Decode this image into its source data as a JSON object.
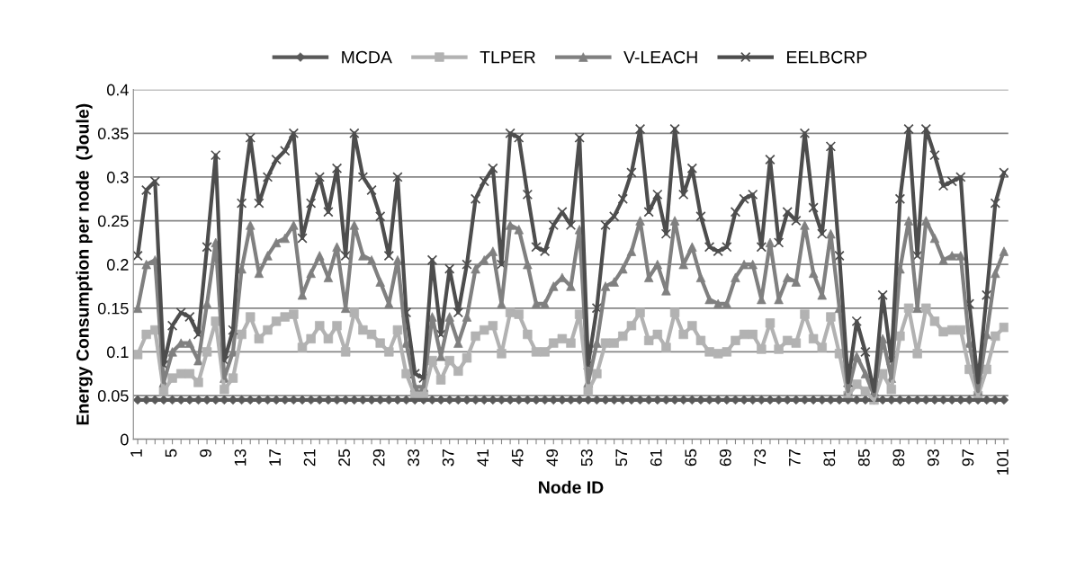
{
  "chart_data": {
    "type": "line",
    "xlabel": "Node ID",
    "ylabel": "Energy Consumption per node  (Joule)",
    "categories": [
      "1",
      null,
      null,
      null,
      "5",
      null,
      null,
      null,
      "9",
      null,
      null,
      null,
      "13",
      null,
      null,
      null,
      "17",
      null,
      null,
      null,
      "21",
      null,
      null,
      null,
      "25",
      null,
      null,
      null,
      "29",
      null,
      null,
      null,
      "33",
      null,
      null,
      null,
      "37",
      null,
      null,
      null,
      "41",
      null,
      null,
      null,
      "45",
      null,
      null,
      null,
      "49",
      null,
      null,
      null,
      "53",
      null,
      null,
      null,
      "57",
      null,
      null,
      null,
      "61",
      null,
      null,
      null,
      "65",
      null,
      null,
      null,
      "69",
      null,
      null,
      null,
      "73",
      null,
      null,
      null,
      "77",
      null,
      null,
      null,
      "81",
      null,
      null,
      null,
      "85",
      null,
      null,
      null,
      "89",
      null,
      null,
      null,
      "93",
      null,
      null,
      null,
      "97",
      null,
      null,
      null,
      "101"
    ],
    "ylim": [
      0,
      0.4
    ],
    "yticks": [
      0,
      0.05,
      0.1,
      0.15,
      0.2,
      0.25,
      0.3,
      0.35,
      0.4
    ],
    "grid": "y",
    "legend": "top",
    "series": [
      {
        "name": "MCDA",
        "color": "#595959",
        "marker": "diamond",
        "values": [
          0.045,
          0.045,
          0.045,
          0.045,
          0.045,
          0.045,
          0.045,
          0.045,
          0.045,
          0.045,
          0.045,
          0.045,
          0.045,
          0.045,
          0.045,
          0.045,
          0.045,
          0.045,
          0.045,
          0.045,
          0.045,
          0.045,
          0.045,
          0.045,
          0.045,
          0.045,
          0.045,
          0.045,
          0.045,
          0.045,
          0.045,
          0.045,
          0.045,
          0.045,
          0.045,
          0.045,
          0.045,
          0.045,
          0.045,
          0.045,
          0.045,
          0.045,
          0.045,
          0.045,
          0.045,
          0.045,
          0.045,
          0.045,
          0.045,
          0.045,
          0.045,
          0.045,
          0.045,
          0.045,
          0.045,
          0.045,
          0.045,
          0.045,
          0.045,
          0.045,
          0.045,
          0.045,
          0.045,
          0.045,
          0.045,
          0.045,
          0.045,
          0.045,
          0.045,
          0.045,
          0.045,
          0.045,
          0.045,
          0.045,
          0.045,
          0.045,
          0.045,
          0.045,
          0.045,
          0.045,
          0.045,
          0.045,
          0.045,
          0.045,
          0.045,
          0.045,
          0.045,
          0.045,
          0.045,
          0.045,
          0.045,
          0.045,
          0.045,
          0.045,
          0.045,
          0.045,
          0.045,
          0.045,
          0.045,
          0.045,
          0.045
        ]
      },
      {
        "name": "TLPER",
        "color": "#b2b2b2",
        "marker": "square",
        "values": [
          0.097,
          0.12,
          0.125,
          0.055,
          0.07,
          0.075,
          0.075,
          0.065,
          0.1,
          0.135,
          0.057,
          0.07,
          0.12,
          0.14,
          0.115,
          0.125,
          0.135,
          0.14,
          0.143,
          0.105,
          0.115,
          0.13,
          0.115,
          0.13,
          0.1,
          0.145,
          0.125,
          0.12,
          0.11,
          0.1,
          0.125,
          0.075,
          0.05,
          0.05,
          0.09,
          0.068,
          0.09,
          0.078,
          0.093,
          0.118,
          0.125,
          0.13,
          0.098,
          0.145,
          0.143,
          0.12,
          0.1,
          0.1,
          0.11,
          0.115,
          0.11,
          0.143,
          0.055,
          0.075,
          0.11,
          0.11,
          0.118,
          0.13,
          0.145,
          0.113,
          0.12,
          0.105,
          0.145,
          0.12,
          0.13,
          0.113,
          0.1,
          0.098,
          0.1,
          0.113,
          0.12,
          0.12,
          0.103,
          0.133,
          0.103,
          0.113,
          0.11,
          0.143,
          0.115,
          0.105,
          0.14,
          0.098,
          0.05,
          0.063,
          0.055,
          0.045,
          0.075,
          0.057,
          0.118,
          0.15,
          0.098,
          0.15,
          0.135,
          0.123,
          0.125,
          0.125,
          0.08,
          0.05,
          0.08,
          0.118,
          0.128
        ]
      },
      {
        "name": "V-LEACH",
        "color": "#808080",
        "marker": "triangle",
        "values": [
          0.15,
          0.2,
          0.205,
          0.065,
          0.1,
          0.11,
          0.11,
          0.09,
          0.155,
          0.225,
          0.07,
          0.1,
          0.195,
          0.245,
          0.19,
          0.21,
          0.225,
          0.23,
          0.245,
          0.165,
          0.19,
          0.21,
          0.185,
          0.22,
          0.15,
          0.245,
          0.21,
          0.205,
          0.18,
          0.155,
          0.205,
          0.11,
          0.06,
          0.06,
          0.14,
          0.095,
          0.14,
          0.11,
          0.14,
          0.195,
          0.205,
          0.215,
          0.155,
          0.245,
          0.24,
          0.2,
          0.155,
          0.155,
          0.175,
          0.185,
          0.175,
          0.24,
          0.065,
          0.11,
          0.175,
          0.18,
          0.195,
          0.215,
          0.25,
          0.185,
          0.2,
          0.17,
          0.25,
          0.2,
          0.22,
          0.185,
          0.16,
          0.155,
          0.155,
          0.185,
          0.2,
          0.2,
          0.16,
          0.225,
          0.16,
          0.185,
          0.18,
          0.245,
          0.19,
          0.165,
          0.235,
          0.15,
          0.055,
          0.095,
          0.075,
          0.05,
          0.115,
          0.07,
          0.195,
          0.25,
          0.15,
          0.25,
          0.23,
          0.205,
          0.21,
          0.21,
          0.11,
          0.055,
          0.12,
          0.19,
          0.215
        ]
      },
      {
        "name": "EELBCRP",
        "color": "#4d4d4d",
        "marker": "cross",
        "values": [
          0.21,
          0.285,
          0.295,
          0.085,
          0.13,
          0.145,
          0.14,
          0.12,
          0.22,
          0.325,
          0.09,
          0.125,
          0.27,
          0.345,
          0.27,
          0.3,
          0.32,
          0.33,
          0.35,
          0.23,
          0.27,
          0.3,
          0.26,
          0.31,
          0.21,
          0.35,
          0.3,
          0.285,
          0.255,
          0.21,
          0.3,
          0.145,
          0.075,
          0.07,
          0.205,
          0.12,
          0.195,
          0.145,
          0.2,
          0.275,
          0.295,
          0.31,
          0.2,
          0.35,
          0.345,
          0.28,
          0.22,
          0.215,
          0.245,
          0.26,
          0.245,
          0.345,
          0.085,
          0.15,
          0.245,
          0.255,
          0.275,
          0.305,
          0.355,
          0.26,
          0.28,
          0.235,
          0.355,
          0.28,
          0.31,
          0.255,
          0.22,
          0.215,
          0.22,
          0.26,
          0.275,
          0.28,
          0.22,
          0.32,
          0.225,
          0.26,
          0.25,
          0.35,
          0.265,
          0.235,
          0.335,
          0.21,
          0.065,
          0.135,
          0.1,
          0.055,
          0.165,
          0.09,
          0.275,
          0.355,
          0.21,
          0.355,
          0.325,
          0.29,
          0.295,
          0.3,
          0.155,
          0.065,
          0.165,
          0.27,
          0.305
        ]
      }
    ]
  }
}
